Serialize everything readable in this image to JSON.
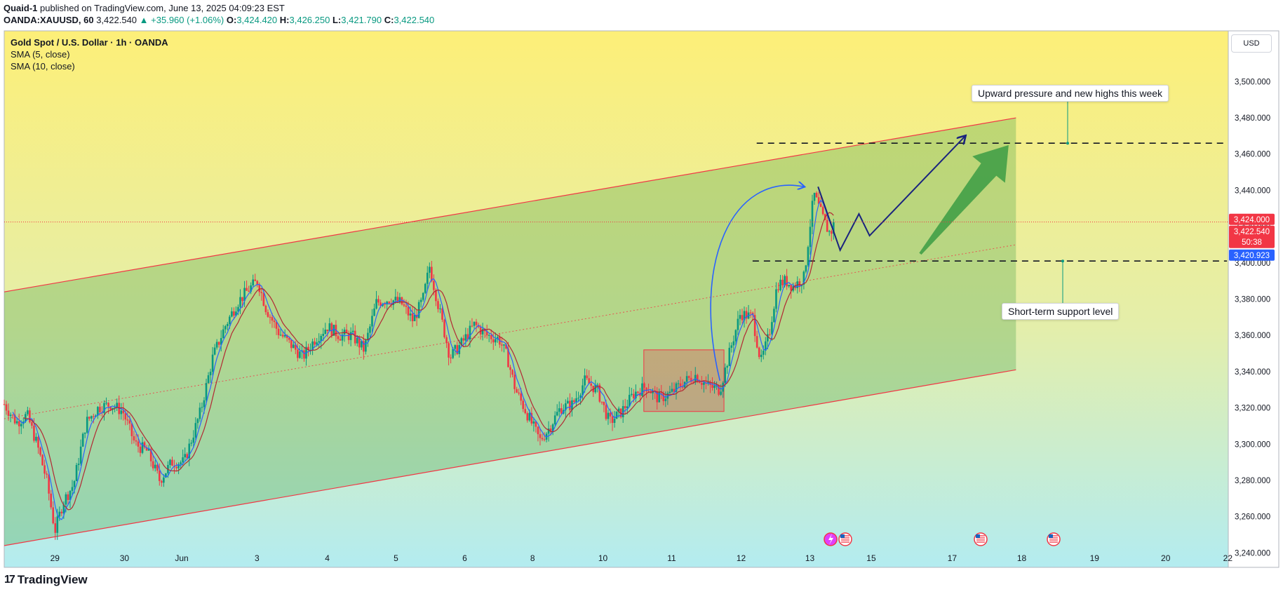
{
  "header": {
    "author": "Quaid-1",
    "published_text": "published on TradingView.com, June 13, 2025 04:09:23 EST"
  },
  "ohlc_line": {
    "symbol": "OANDA:XAUUSD, 60",
    "last": "3,422.540",
    "change": "▲ +35.960 (+1.06%)",
    "o_label": "O:",
    "o_value": "3,424.420",
    "h_label": "H:",
    "h_value": "3,426.250",
    "l_label": "L:",
    "l_value": "3,421.790",
    "c_label": "C:",
    "c_value": "3,422.540"
  },
  "legend": {
    "title": "Gold Spot / U.S. Dollar · 1h · OANDA",
    "sma1": "SMA (5, close)",
    "sma2": "SMA (10, close)"
  },
  "currency": "USD",
  "annotations": {
    "top_callout": "Upward pressure and new highs this week",
    "bottom_callout": "Short-term support level"
  },
  "price_badges": {
    "red_top": "3,424.000",
    "red_mid": "3,422.540",
    "timer": "50:38",
    "blue": "3,420.923"
  },
  "footer": {
    "brand": "TradingView"
  },
  "colors": {
    "up": "#089981",
    "down": "#f23645",
    "sma5": "#2962ff",
    "sma10": "#b22833",
    "channel": "#f23645",
    "arrow_green": "#43a047",
    "path_navy": "#1a237e",
    "curve_blue": "#2962ff"
  },
  "chart_data": {
    "type": "candlestick",
    "title": "Gold Spot / U.S. Dollar · 1h · OANDA",
    "ylabel": "USD",
    "ylim": [
      3232,
      3528
    ],
    "y_ticks": [
      3240,
      3260,
      3280,
      3300,
      3320,
      3340,
      3360,
      3380,
      3400,
      3420,
      3440,
      3460,
      3480,
      3500
    ],
    "y_tick_labels": [
      "3,240.000",
      "3,260.000",
      "3,280.000",
      "3,300.000",
      "3,320.000",
      "3,340.000",
      "3,360.000",
      "3,380.000",
      "3,400.000",
      "3,420.000",
      "3,440.000",
      "3,460.000",
      "3,480.000",
      "3,500.000"
    ],
    "x_ticks": [
      "29",
      "30",
      "Jun",
      "3",
      "4",
      "5",
      "6",
      "8",
      "10",
      "11",
      "12",
      "13",
      "15",
      "17",
      "18",
      "19",
      "20",
      "22"
    ],
    "x_tick_index": [
      62,
      147,
      217,
      309,
      395,
      479,
      563,
      646,
      732,
      816,
      901,
      985,
      1060,
      1159,
      1244,
      1333,
      1420,
      1496
    ],
    "price_path": [
      [
        0,
        3322
      ],
      [
        15,
        3312
      ],
      [
        28,
        3316
      ],
      [
        40,
        3300
      ],
      [
        52,
        3280
      ],
      [
        62,
        3252
      ],
      [
        72,
        3268
      ],
      [
        85,
        3278
      ],
      [
        100,
        3312
      ],
      [
        115,
        3320
      ],
      [
        130,
        3322
      ],
      [
        145,
        3318
      ],
      [
        160,
        3300
      ],
      [
        175,
        3296
      ],
      [
        190,
        3280
      ],
      [
        205,
        3290
      ],
      [
        220,
        3290
      ],
      [
        240,
        3318
      ],
      [
        255,
        3348
      ],
      [
        270,
        3365
      ],
      [
        285,
        3378
      ],
      [
        300,
        3386
      ],
      [
        310,
        3390
      ],
      [
        320,
        3375
      ],
      [
        335,
        3362
      ],
      [
        350,
        3355
      ],
      [
        365,
        3348
      ],
      [
        380,
        3358
      ],
      [
        395,
        3365
      ],
      [
        410,
        3360
      ],
      [
        425,
        3360
      ],
      [
        440,
        3352
      ],
      [
        455,
        3378
      ],
      [
        470,
        3380
      ],
      [
        485,
        3378
      ],
      [
        500,
        3368
      ],
      [
        512,
        3380
      ],
      [
        520,
        3398
      ],
      [
        530,
        3378
      ],
      [
        545,
        3348
      ],
      [
        560,
        3356
      ],
      [
        575,
        3366
      ],
      [
        590,
        3360
      ],
      [
        605,
        3358
      ],
      [
        615,
        3348
      ],
      [
        625,
        3330
      ],
      [
        640,
        3316
      ],
      [
        655,
        3302
      ],
      [
        665,
        3308
      ],
      [
        680,
        3320
      ],
      [
        695,
        3322
      ],
      [
        710,
        3335
      ],
      [
        725,
        3330
      ],
      [
        740,
        3312
      ],
      [
        755,
        3318
      ],
      [
        770,
        3328
      ],
      [
        785,
        3332
      ],
      [
        800,
        3325
      ],
      [
        815,
        3328
      ],
      [
        830,
        3334
      ],
      [
        845,
        3338
      ],
      [
        860,
        3332
      ],
      [
        875,
        3330
      ],
      [
        890,
        3356
      ],
      [
        900,
        3372
      ],
      [
        915,
        3370
      ],
      [
        925,
        3345
      ],
      [
        935,
        3360
      ],
      [
        945,
        3388
      ],
      [
        955,
        3390
      ],
      [
        965,
        3387
      ],
      [
        978,
        3392
      ],
      [
        985,
        3420
      ],
      [
        990,
        3438
      ],
      [
        998,
        3428
      ],
      [
        1005,
        3420
      ],
      [
        1010,
        3416
      ],
      [
        1015,
        3422
      ]
    ],
    "channel": {
      "upper": [
        [
          0,
          3384
        ],
        [
          1237,
          3480
        ]
      ],
      "lower": [
        [
          0,
          3244
        ],
        [
          1237,
          3341
        ]
      ],
      "mid": [
        [
          0,
          3314
        ],
        [
          1237,
          3410
        ]
      ]
    },
    "levels": [
      3466,
      3401
    ],
    "consolidation_box": {
      "x": [
        782,
        880
      ],
      "y": [
        3318,
        3352
      ]
    },
    "projection_path": [
      [
        995,
        3442
      ],
      [
        1022,
        3407
      ],
      [
        1045,
        3427
      ],
      [
        1058,
        3415
      ],
      [
        1175,
        3470
      ]
    ],
    "green_arrow": {
      "from": [
        1120,
        3405
      ],
      "to": [
        1228,
        3465
      ]
    },
    "markers": {
      "last_price": 3422.54,
      "red_badge_price": 3424,
      "blue_badge_price": 3420.923
    }
  }
}
